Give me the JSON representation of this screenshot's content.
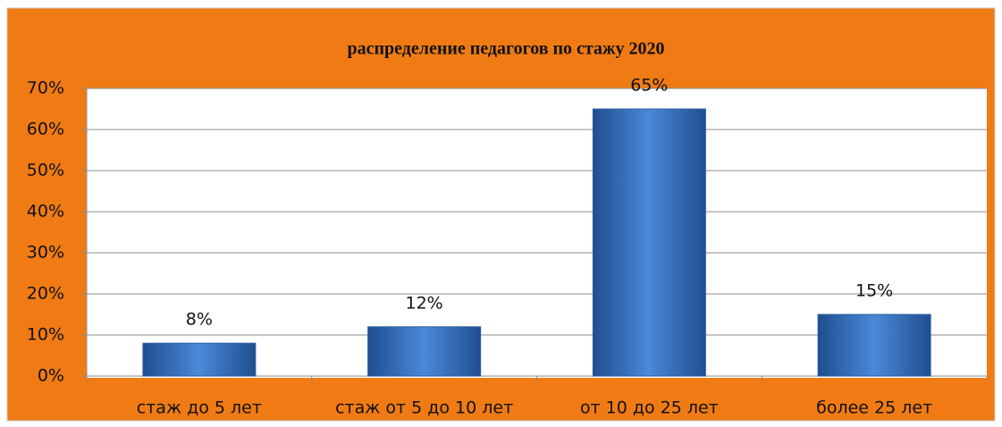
{
  "chart_data": {
    "type": "bar",
    "title": "распределение педагогов по стажу 2020",
    "categories": [
      "стаж до 5 лет",
      "стаж от 5 до 10 лет",
      "от 10 до 25 лет",
      "более 25 лет"
    ],
    "values": [
      8,
      12,
      65,
      15
    ],
    "value_labels": [
      "8%",
      "12%",
      "65%",
      "15%"
    ],
    "color": "#3f7fcf",
    "ylim": [
      0,
      70
    ],
    "yticks": [
      {
        "value": 0,
        "label": "0%"
      },
      {
        "value": 10,
        "label": "10%"
      },
      {
        "value": 20,
        "label": "20%"
      },
      {
        "value": 30,
        "label": "30%"
      },
      {
        "value": 40,
        "label": "40%"
      },
      {
        "value": 50,
        "label": "50%"
      },
      {
        "value": 60,
        "label": "60%"
      },
      {
        "value": 70,
        "label": "70%"
      }
    ],
    "grid": true
  }
}
